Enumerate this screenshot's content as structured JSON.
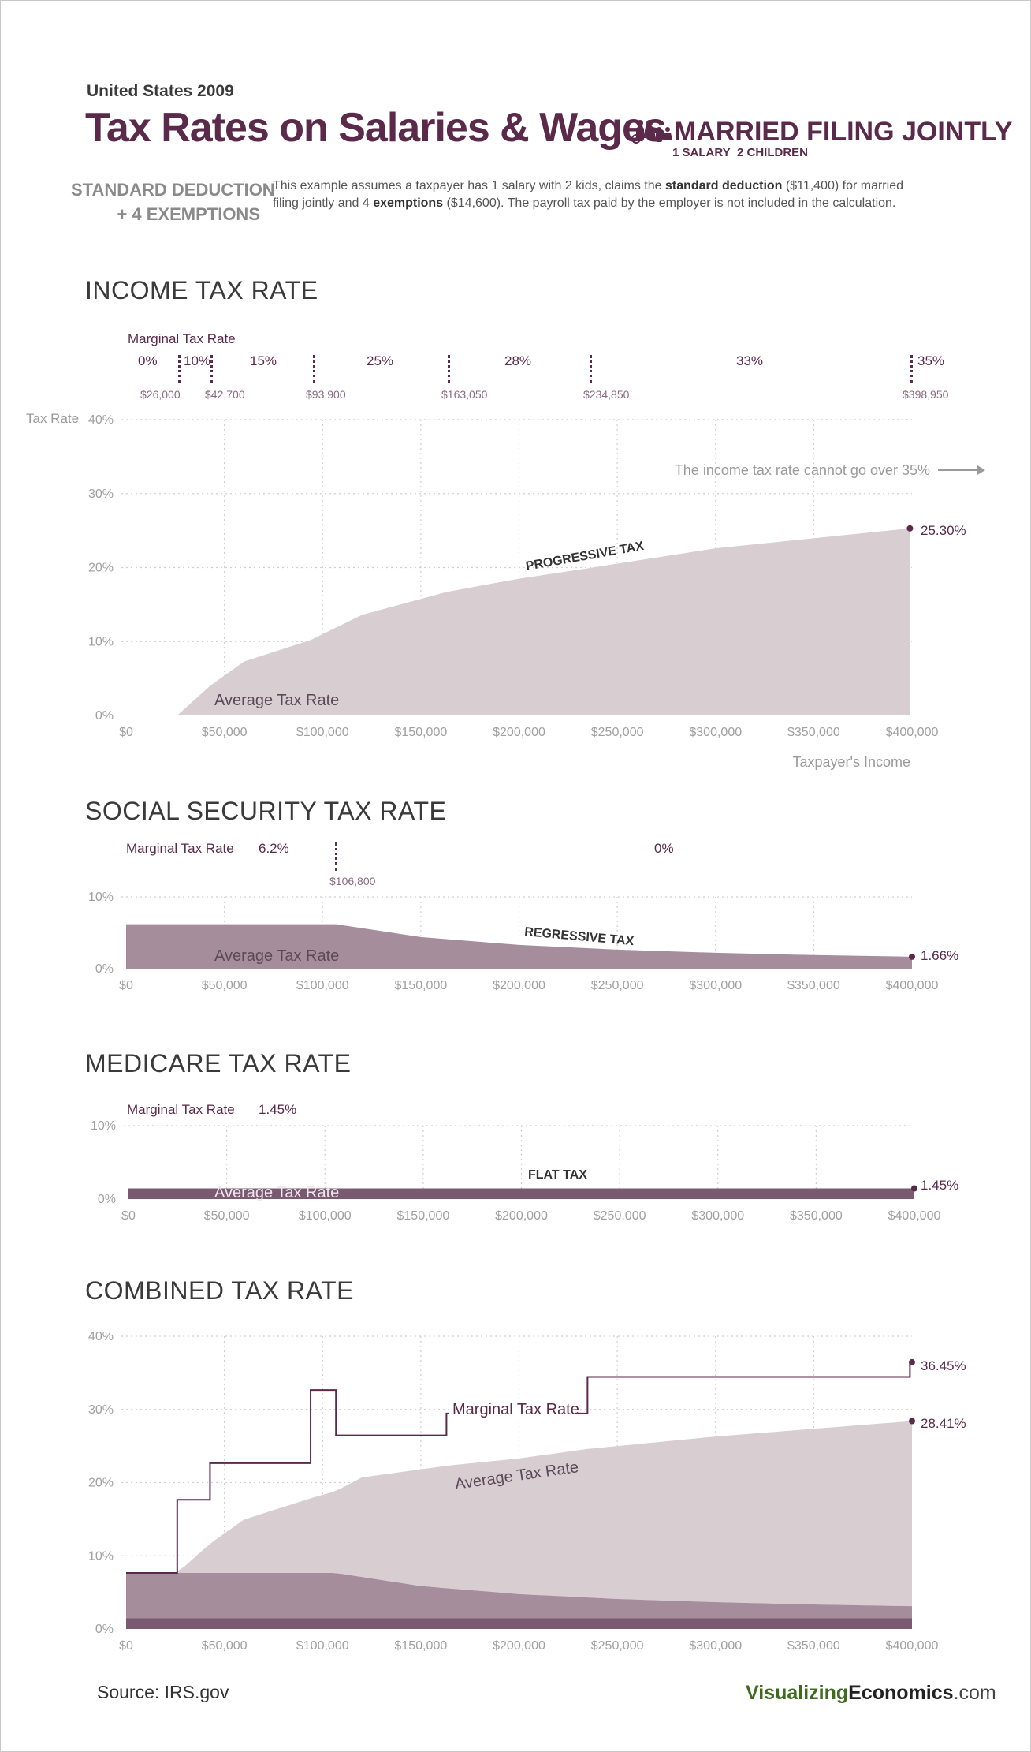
{
  "header": {
    "year_label": "United States 2009",
    "title": "Tax Rates on Salaries & Wages",
    "filing_status": "MARRIED FILING JOINTLY",
    "salary_note": "1 SALARY",
    "children_note": "2 CHILDREN",
    "deduction_line1": "STANDARD DEDUCTION",
    "deduction_line2": "+ 4 EXEMPTIONS",
    "desc_part1": "This example assumes a taxpayer has 1 salary with 2 kids, claims the ",
    "desc_bold1": "standard deduction",
    "desc_part2": " ($11,400) for married filing jointly and 4 ",
    "desc_bold2": "exemptions",
    "desc_part3": " ($14,600). The payroll tax paid by the employer is not included in the calculation."
  },
  "colors": {
    "plum": "#5b2a4b",
    "light_area": "#d8cdd1",
    "mid_area": "#a68d9c",
    "dark_area": "#7a5a70",
    "line": "#5b2a4b"
  },
  "income": {
    "section_title": "INCOME TAX RATE",
    "marginal_label": "Marginal Tax Rate",
    "y_axis_label": "Tax Rate",
    "x_axis_label": "Taxpayer's Income",
    "brackets": [
      {
        "rate": "0%"
      },
      {
        "rate": "10%"
      },
      {
        "rate": "15%"
      },
      {
        "rate": "25%"
      },
      {
        "rate": "28%"
      },
      {
        "rate": "33%"
      },
      {
        "rate": "35%"
      }
    ],
    "thresholds": [
      "$26,000",
      "$42,700",
      "$93,900",
      "$163,050",
      "$234,850",
      "$398,950"
    ],
    "cap_note": "The income tax rate cannot go over 35%",
    "tax_type_label": "PROGRESSIVE TAX",
    "avg_label": "Average Tax Rate",
    "end_value": "25.30%"
  },
  "social": {
    "section_title": "SOCIAL SECURITY TAX RATE",
    "marginal_label": "Marginal Tax Rate",
    "rate_before": "6.2%",
    "rate_after": "0%",
    "threshold": "$106,800",
    "tax_type_label": "REGRESSIVE TAX",
    "avg_label": "Average Tax Rate",
    "end_value": "1.66%"
  },
  "medicare": {
    "section_title": "MEDICARE TAX RATE",
    "marginal_label": "Marginal Tax Rate",
    "rate": "1.45%",
    "tax_type_label": "FLAT TAX",
    "avg_label": "Average Tax Rate",
    "end_value": "1.45%"
  },
  "combined": {
    "section_title": "COMBINED TAX RATE",
    "marginal_label": "Marginal Tax Rate",
    "avg_label": "Average Tax Rate",
    "end_marginal": "36.45%",
    "end_average": "28.41%"
  },
  "footer": {
    "source": "Source:  IRS.gov",
    "brand_part1": "Visualizing",
    "brand_part2": "Economics",
    "brand_part3": ".com"
  },
  "chart_data": [
    {
      "type": "area",
      "title": "INCOME TAX RATE",
      "ylabel": "Tax Rate",
      "xlabel": "Taxpayer's Income",
      "x_ticks": [
        "$0",
        "$50,000",
        "$100,000",
        "$150,000",
        "$200,000",
        "$250,000",
        "$300,000",
        "$350,000",
        "$400,000"
      ],
      "y_ticks": [
        "0%",
        "10%",
        "20%",
        "30%",
        "40%"
      ],
      "xlim": [
        0,
        400000
      ],
      "ylim": [
        0,
        40
      ],
      "grid": true,
      "series": [
        {
          "name": "Average Tax Rate",
          "x": [
            0,
            26000,
            42700,
            60000,
            93900,
            120000,
            163050,
            200000,
            234850,
            300000,
            398950
          ],
          "values": [
            0,
            0,
            4.0,
            7.3,
            10.2,
            13.6,
            16.7,
            18.5,
            19.9,
            22.6,
            25.3
          ]
        }
      ]
    },
    {
      "type": "area",
      "title": "SOCIAL SECURITY TAX RATE",
      "x_ticks": [
        "$0",
        "$50,000",
        "$100,000",
        "$150,000",
        "$200,000",
        "$250,000",
        "$300,000",
        "$350,000",
        "$400,000"
      ],
      "y_ticks": [
        "0%",
        "10%"
      ],
      "xlim": [
        0,
        400000
      ],
      "ylim": [
        0,
        10
      ],
      "grid": true,
      "series": [
        {
          "name": "Average Tax Rate",
          "x": [
            0,
            106800,
            150000,
            200000,
            250000,
            300000,
            350000,
            400000
          ],
          "values": [
            6.2,
            6.2,
            4.41,
            3.31,
            2.65,
            2.21,
            1.89,
            1.66
          ]
        }
      ]
    },
    {
      "type": "area",
      "title": "MEDICARE TAX RATE",
      "x_ticks": [
        "$0",
        "$50,000",
        "$100,000",
        "$150,000",
        "$200,000",
        "$250,000",
        "$300,000",
        "$350,000",
        "$400,000"
      ],
      "y_ticks": [
        "0%",
        "10%"
      ],
      "xlim": [
        0,
        400000
      ],
      "ylim": [
        0,
        10
      ],
      "grid": true,
      "series": [
        {
          "name": "Average Tax Rate",
          "x": [
            0,
            400000
          ],
          "values": [
            1.45,
            1.45
          ]
        }
      ]
    },
    {
      "type": "line",
      "title": "COMBINED TAX RATE",
      "x_ticks": [
        "$0",
        "$50,000",
        "$100,000",
        "$150,000",
        "$200,000",
        "$250,000",
        "$300,000",
        "$350,000",
        "$400,000"
      ],
      "y_ticks": [
        "0%",
        "10%",
        "20%",
        "30%",
        "40%"
      ],
      "xlim": [
        0,
        400000
      ],
      "ylim": [
        0,
        40
      ],
      "grid": true,
      "series": [
        {
          "name": "Marginal Tax Rate",
          "x": [
            0,
            26000,
            26000,
            42700,
            42700,
            93900,
            93900,
            106800,
            106800,
            163050,
            163050,
            234850,
            234850,
            398950,
            398950,
            400000
          ],
          "values": [
            7.65,
            7.65,
            17.65,
            17.65,
            22.65,
            22.65,
            32.65,
            32.65,
            26.45,
            26.45,
            29.45,
            29.45,
            34.45,
            34.45,
            36.45,
            36.45
          ]
        },
        {
          "name": "Average Tax Rate",
          "x": [
            0,
            26000,
            42700,
            60000,
            93900,
            106800,
            120000,
            163050,
            200000,
            234850,
            300000,
            400000
          ],
          "values": [
            7.65,
            7.65,
            11.65,
            14.95,
            17.85,
            18.85,
            20.7,
            22.3,
            23.3,
            24.6,
            26.3,
            28.41
          ]
        }
      ]
    }
  ]
}
